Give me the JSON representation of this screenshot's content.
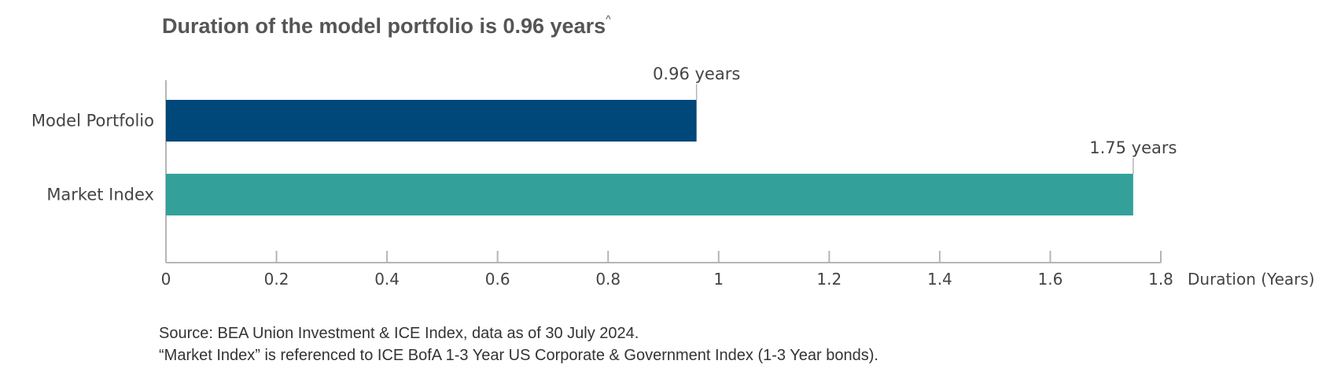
{
  "header": {
    "title": "Duration of the model portfolio is 0.96 years",
    "title_mark": "^"
  },
  "chart_data": {
    "type": "bar",
    "orientation": "horizontal",
    "categories": [
      "Model Portfolio",
      "Market Index"
    ],
    "values": [
      0.96,
      1.75
    ],
    "data_labels": [
      "0.96 years",
      "1.75 years"
    ],
    "colors": [
      "#00487A",
      "#33A19A"
    ],
    "xlabel": "Duration (Years)",
    "xlim": [
      0,
      1.8
    ],
    "xticks": [
      "0",
      "0.2",
      "0.4",
      "0.6",
      "0.8",
      "1",
      "1.2",
      "1.4",
      "1.6",
      "1.8"
    ],
    "grid": false,
    "legend": "none"
  },
  "footnotes": {
    "source": "Source: BEA Union Investment & ICE Index, data as of 30 July 2024.",
    "index_note": "“Market Index” is referenced to ICE BofA 1-3 Year US Corporate & Government Index (1-3 Year bonds)."
  }
}
